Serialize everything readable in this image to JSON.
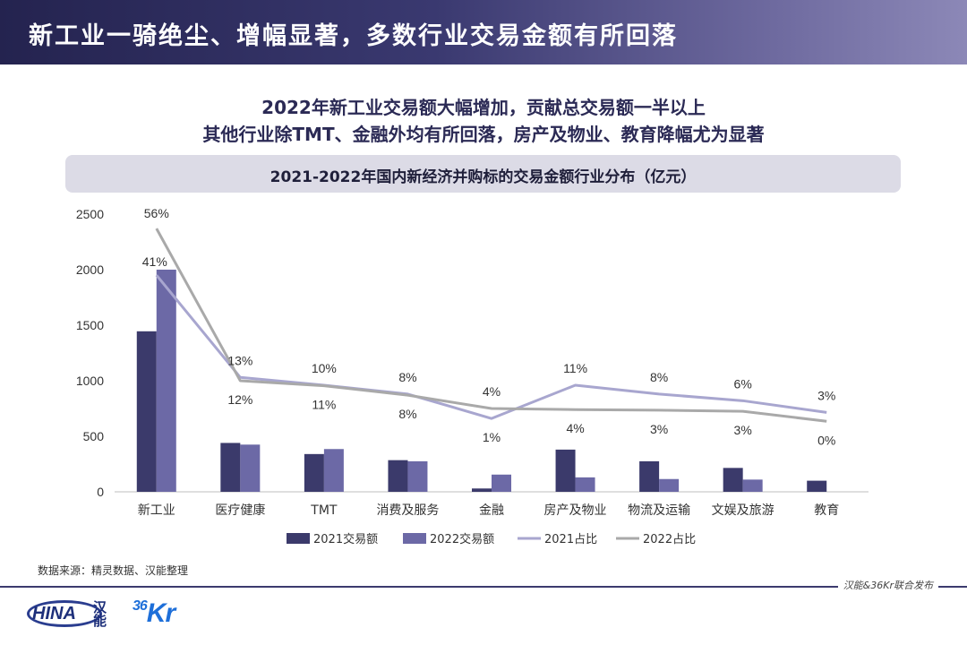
{
  "header": {
    "title": "新工业一骑绝尘、增幅显著，多数行业交易金额有所回落"
  },
  "subtitle": {
    "line1": "2022年新工业交易额大幅增加，贡献总交易额一半以上",
    "line2": "其他行业除TMT、金融外均有所回落，房产及物业、教育降幅尤为显著"
  },
  "chart_data": {
    "type": "bar",
    "title": "2021-2022年国内新经济并购标的交易金额行业分布（亿元）",
    "categories": [
      "新工业",
      "医疗健康",
      "TMT",
      "消费及服务",
      "金融",
      "房产及物业",
      "物流及运输",
      "文娱及旅游",
      "教育"
    ],
    "ylim": [
      0,
      2500
    ],
    "yticks": [
      0,
      500,
      1000,
      1500,
      2000,
      2500
    ],
    "series": [
      {
        "name": "2021交易额",
        "kind": "bar",
        "color": "#3b3a6b",
        "values": [
          1445,
          440,
          340,
          285,
          30,
          380,
          275,
          215,
          100
        ]
      },
      {
        "name": "2022交易额",
        "kind": "bar",
        "color": "#6c69a6",
        "values": [
          2000,
          425,
          385,
          275,
          155,
          130,
          115,
          110,
          0
        ]
      },
      {
        "name": "2021占比",
        "kind": "line",
        "color": "#a8a6cf",
        "values_pct": [
          41,
          12,
          11,
          8,
          4,
          11,
          8,
          6,
          3
        ],
        "values_plot": [
          1950,
          1030,
          960,
          880,
          660,
          960,
          880,
          820,
          715
        ]
      },
      {
        "name": "2022占比",
        "kind": "line",
        "color": "#a9a9a9",
        "values_pct": [
          56,
          13,
          10,
          8,
          1,
          4,
          3,
          3,
          0
        ],
        "values_plot": [
          2370,
          1000,
          955,
          870,
          750,
          740,
          735,
          725,
          635
        ]
      }
    ],
    "pct_labels": {
      "s2021": [
        "41%",
        "12%",
        "11%",
        "8%",
        "4%",
        "11%",
        "8%",
        "6%",
        "3%"
      ],
      "s2022": [
        "56%",
        "13%",
        "10%",
        "8%",
        "1%",
        "4%",
        "3%",
        "3%",
        "0%"
      ]
    },
    "legend_position": "bottom",
    "grid": false
  },
  "source": "数据来源：精灵数据、汉能整理",
  "footer": {
    "joint_release": "汉能&36Kr联合发布",
    "logo_hina": "HINA",
    "logo_hina_cn": "汉能",
    "logo_36kr_num": "36",
    "logo_36kr_txt": "Kr"
  }
}
